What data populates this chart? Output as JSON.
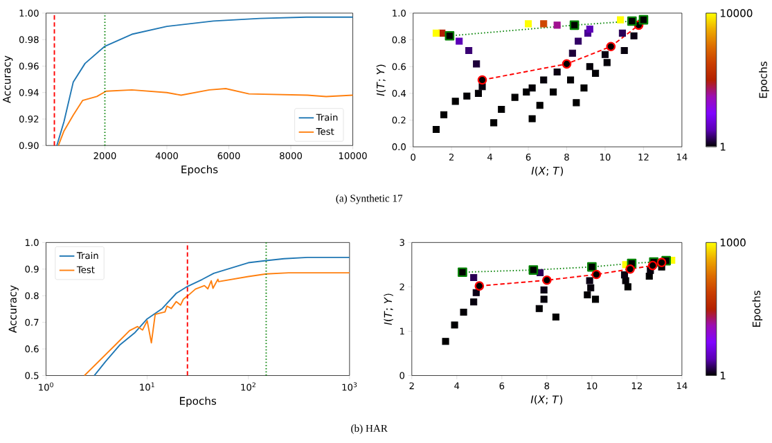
{
  "chart_data": [
    {
      "type": "line",
      "xlabel": "Epochs",
      "ylabel": "Accuracy",
      "xlim": [
        100,
        10000
      ],
      "ylim": [
        0.9,
        1.0
      ],
      "xticks": [
        2000,
        4000,
        6000,
        8000,
        10000
      ],
      "yticks": [
        {
          "value": 0.9,
          "label": "0.90"
        },
        0.92,
        0.94,
        0.96,
        0.98,
        {
          "value": 1.0,
          "label": "1.00"
        }
      ],
      "legend": "bottom right",
      "ref_lines": [
        {
          "axis": "x",
          "value": 370,
          "color": "#ff0000",
          "line_style": "dashed"
        },
        {
          "axis": "x",
          "value": 2000,
          "color": "#008000",
          "line_style": "dotted"
        }
      ],
      "series": [
        {
          "name": "Train",
          "color": "#1f77b4",
          "x": [
            450,
            680,
            980,
            1360,
            2000,
            2870,
            4000,
            5500,
            7000,
            8500,
            10000
          ],
          "values": [
            0.9,
            0.918,
            0.948,
            0.962,
            0.975,
            0.984,
            0.99,
            0.994,
            0.996,
            0.997,
            0.997
          ]
        },
        {
          "name": "Test",
          "color": "#ff7f0e",
          "x": [
            500,
            680,
            980,
            1280,
            1740,
            2040,
            2870,
            4000,
            4460,
            5370,
            5900,
            6650,
            8540,
            9140,
            10000
          ],
          "values": [
            0.9,
            0.911,
            0.923,
            0.934,
            0.937,
            0.941,
            0.942,
            0.94,
            0.938,
            0.942,
            0.943,
            0.939,
            0.938,
            0.937,
            0.938
          ]
        }
      ],
      "annotations": [
        "(a) Synthetic 17"
      ]
    },
    {
      "type": "scatter",
      "xlabel": "*I*(*X*; *T*)",
      "ylabel": "*I*(*T*; *Y*)",
      "clabel": "Epochs",
      "clim": [
        1,
        10000
      ],
      "cticks": [
        1,
        10000
      ],
      "xlim": [
        0,
        14
      ],
      "ylim": [
        0,
        1.0
      ],
      "xticks": [
        0,
        2,
        4,
        6,
        8,
        10,
        12,
        14
      ],
      "yticks": [
        {
          "value": 0,
          "label": "0.0"
        },
        0.2,
        0.4,
        0.6,
        0.8,
        {
          "value": 1.0,
          "label": "1.0"
        }
      ],
      "marker": "square",
      "series": [
        {
          "x": [
            1.2,
            1.6,
            2.2,
            2.8,
            3.4,
            3.6,
            3.3,
            2.9,
            2.4,
            1.5,
            1.2
          ],
          "values": [
            0.13,
            0.24,
            0.34,
            0.38,
            0.4,
            0.45,
            0.62,
            0.72,
            0.79,
            0.85,
            0.85
          ],
          "cvalues": [
            1,
            5,
            10,
            20,
            40,
            100,
            400,
            800,
            1300,
            5000,
            10000
          ],
          "colors": [
            "#000000",
            "#000001",
            "#000001",
            "#010003",
            "#030006",
            "#07000e",
            "#1d0039",
            "#3a0073",
            "#5c00b7",
            "#b42000",
            "#ffff00"
          ]
        },
        {
          "x": [
            4.2,
            4.6,
            5.3,
            5.9,
            6.2,
            6.8,
            7.5,
            8.3,
            8.6,
            9.1,
            9.2,
            7.5,
            6.8,
            6.0
          ],
          "values": [
            0.18,
            0.28,
            0.37,
            0.41,
            0.44,
            0.5,
            0.56,
            0.7,
            0.79,
            0.85,
            0.88,
            0.91,
            0.92,
            0.92
          ],
          "cvalues": [
            1,
            5,
            10,
            20,
            40,
            70,
            120,
            400,
            700,
            1000,
            1300,
            4000,
            6500,
            10000
          ],
          "colors": [
            "#000000",
            "#000001",
            "#000001",
            "#010003",
            "#030006",
            "#05000a",
            "#090011",
            "#1d0039",
            "#320065",
            "#480090",
            "#5c00b7",
            "#a11190",
            "#ce4700",
            "#ffff00"
          ]
        },
        {
          "x": [
            6.2,
            6.6,
            7.3,
            8.2,
            9.2,
            10.0,
            10.9,
            10.8
          ],
          "values": [
            0.21,
            0.31,
            0.41,
            0.5,
            0.6,
            0.69,
            0.85,
            0.95
          ],
          "cvalues": [
            1,
            5,
            15,
            30,
            60,
            120,
            600,
            10000
          ],
          "colors": [
            "#000000",
            "#000001",
            "#010002",
            "#020004",
            "#040008",
            "#090011",
            "#2b0056",
            "#ffff00"
          ]
        },
        {
          "x": [
            8.5,
            8.9,
            9.5,
            10.1,
            11.0,
            11.5
          ],
          "values": [
            0.33,
            0.44,
            0.55,
            0.63,
            0.72,
            0.83
          ],
          "cvalues": [
            1,
            10,
            30,
            60,
            100,
            150
          ],
          "colors": [
            "#000000",
            "#000001",
            "#020004",
            "#040008",
            "#07000e",
            "#0b0015"
          ]
        },
        {
          "type": "line",
          "color": "#ff0000",
          "marker": "circle",
          "line_style": "dashed",
          "x": [
            3.6,
            8.0,
            10.3,
            11.75
          ],
          "values": [
            0.5,
            0.62,
            0.75,
            0.91
          ]
        },
        {
          "type": "line",
          "color": "#008000",
          "marker": "square",
          "line_style": "dotted",
          "x": [
            1.9,
            8.4,
            11.4,
            12.0
          ],
          "values": [
            0.83,
            0.91,
            0.94,
            0.95
          ]
        }
      ]
    },
    {
      "type": "line",
      "log": "x",
      "xlabel": "Epochs",
      "ylabel": "Accuracy",
      "xlim": [
        1,
        1000
      ],
      "ylim": [
        0.5,
        1.0
      ],
      "xticks": [
        {
          "value": 1,
          "label": "10$^{0}$"
        },
        {
          "value": 10,
          "label": "10$^{1}$"
        },
        {
          "value": 100,
          "label": "10$^{2}$"
        },
        {
          "value": 1000,
          "label": "10$^{3}$"
        }
      ],
      "yticks": [
        0.5,
        0.6,
        0.7,
        0.8,
        0.9,
        {
          "value": 1.0,
          "label": "1.0"
        }
      ],
      "legend": "top left",
      "ref_lines": [
        {
          "axis": "x",
          "value": 25,
          "color": "#ff0000",
          "line_style": "dashed"
        },
        {
          "axis": "x",
          "value": 150,
          "color": "#008000",
          "line_style": "dotted"
        }
      ],
      "series": [
        {
          "name": "Train",
          "color": "#1f77b4",
          "x": [
            3,
            3.9,
            5.4,
            7.5,
            10,
            14.1,
            19.4,
            25,
            34.9,
            45.5,
            100,
            150,
            225,
            385,
            1000
          ],
          "values": [
            0.5,
            0.554,
            0.616,
            0.66,
            0.713,
            0.752,
            0.809,
            0.835,
            0.861,
            0.884,
            0.924,
            0.932,
            0.939,
            0.944,
            0.944
          ]
        },
        {
          "name": "Test",
          "color": "#ff7f0e",
          "x": [
            2.4,
            4.87,
            6.7,
            8,
            9,
            10,
            11,
            12,
            15,
            15.7,
            17.3,
            19.4,
            21.4,
            22.8,
            25.4,
            30,
            36.8,
            39.8,
            43,
            44.7,
            50,
            50.7,
            100,
            150,
            250,
            1000
          ],
          "values": [
            0.5,
            0.616,
            0.669,
            0.684,
            0.671,
            0.706,
            0.623,
            0.73,
            0.739,
            0.761,
            0.752,
            0.778,
            0.765,
            0.787,
            0.801,
            0.825,
            0.838,
            0.826,
            0.856,
            0.828,
            0.862,
            0.853,
            0.872,
            0.882,
            0.886,
            0.886
          ]
        }
      ],
      "annotations": [
        "(b) HAR"
      ]
    },
    {
      "type": "scatter",
      "xlabel": "*I*(*X*; *T*)",
      "ylabel": "*I*(*T*; *Y*)",
      "clabel": "Epochs",
      "clim": [
        1,
        1000
      ],
      "cticks": [
        1,
        1000
      ],
      "xlim": [
        2,
        14
      ],
      "ylim": [
        0,
        3
      ],
      "xticks": [
        2,
        4,
        6,
        8,
        10,
        12,
        14
      ],
      "yticks": [
        0,
        1,
        2,
        3
      ],
      "marker": "square",
      "series": [
        {
          "x": [
            3.5,
            3.9,
            4.3,
            4.75,
            4.86,
            4.75
          ],
          "values": [
            0.77,
            1.14,
            1.43,
            1.66,
            1.87,
            2.21
          ],
          "cvalues": [
            1,
            3,
            6,
            10,
            16,
            60
          ],
          "colors": [
            "#000000",
            "#010003",
            "#040007",
            "#07000d",
            "#0b0016",
            "#2b0055"
          ]
        },
        {
          "x": [
            8.4,
            7.66,
            7.87,
            7.87,
            7.7
          ],
          "values": [
            1.32,
            1.51,
            1.72,
            1.93,
            2.32
          ],
          "cvalues": [
            1,
            4,
            8,
            15,
            60
          ],
          "colors": [
            "#000000",
            "#020004",
            "#05000a",
            "#0a0014",
            "#2b0055"
          ]
        },
        {
          "x": [
            10.16,
            9.8,
            9.95,
            9.9
          ],
          "values": [
            1.72,
            1.82,
            1.98,
            2.14
          ],
          "cvalues": [
            1,
            4,
            8,
            15
          ],
          "colors": [
            "#000000",
            "#020004",
            "#05000a",
            "#0a0014"
          ]
        },
        {
          "x": [
            11.6,
            11.5,
            11.45,
            11.5
          ],
          "values": [
            2.0,
            2.14,
            2.27,
            2.5
          ],
          "cvalues": [
            1,
            6,
            12,
            1000
          ],
          "colors": [
            "#000000",
            "#040007",
            "#080010",
            "#ffff00"
          ]
        },
        {
          "x": [
            12.55,
            12.6
          ],
          "values": [
            2.24,
            2.37
          ],
          "cvalues": [
            1,
            10
          ],
          "colors": [
            "#000000",
            "#07000d"
          ]
        },
        {
          "x": [
            13.1,
            13.55
          ],
          "values": [
            2.45,
            2.6
          ],
          "cvalues": [
            1,
            1000
          ],
          "colors": [
            "#000000",
            "#ffff00"
          ]
        },
        {
          "type": "line",
          "color": "#008000",
          "marker": "square",
          "line_style": "dotted",
          "x": [
            4.25,
            7.4,
            10.0,
            11.77,
            12.75,
            13.3
          ],
          "values": [
            2.33,
            2.38,
            2.45,
            2.53,
            2.56,
            2.59
          ]
        },
        {
          "type": "line",
          "color": "#ff0000",
          "marker": "circle",
          "line_style": "dashed",
          "x": [
            5.0,
            8.0,
            10.2,
            11.7,
            12.7,
            13.1
          ],
          "values": [
            2.02,
            2.15,
            2.28,
            2.4,
            2.48,
            2.55
          ]
        }
      ]
    }
  ]
}
